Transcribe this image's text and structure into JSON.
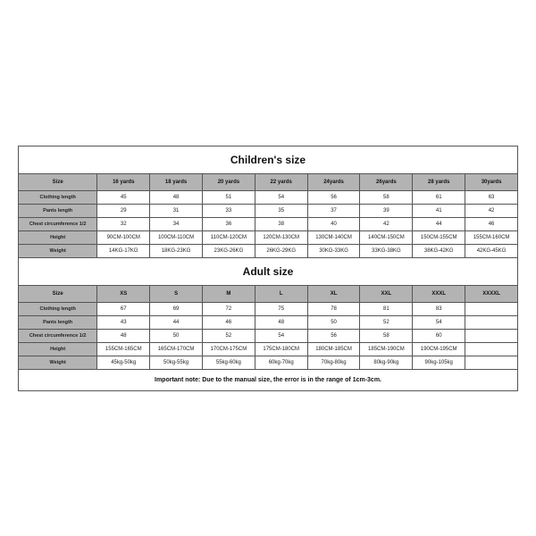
{
  "children": {
    "title": "Children's size",
    "columns": [
      "Size",
      "16 yards",
      "18 yards",
      "20 yards",
      "22 yards",
      "24yards",
      "26yards",
      "28 yards",
      "30yards"
    ],
    "rows": [
      {
        "label": "Clothing length",
        "values": [
          "45",
          "48",
          "51",
          "54",
          "56",
          "58",
          "61",
          "63"
        ]
      },
      {
        "label": "Pants length",
        "values": [
          "29",
          "31",
          "33",
          "35",
          "37",
          "39",
          "41",
          "42"
        ]
      },
      {
        "label": "Chest circumference 1/2",
        "values": [
          "32",
          "34",
          "36",
          "38",
          "40",
          "42",
          "44",
          "46"
        ]
      },
      {
        "label": "Height",
        "values": [
          "90CM-100CM",
          "100CM-110CM",
          "110CM-120CM",
          "120CM-130CM",
          "130CM-140CM",
          "140CM-150CM",
          "150CM-155CM",
          "155CM-160CM"
        ]
      },
      {
        "label": "Weight",
        "values": [
          "14KG-17KG",
          "18KG-23KG",
          "23KG-26KG",
          "26KG-29KG",
          "30KG-33KG",
          "33KG-38KG",
          "38KG-42KG",
          "42KG-45KG"
        ]
      }
    ]
  },
  "adult": {
    "title": "Adult size",
    "columns": [
      "Size",
      "XS",
      "S",
      "M",
      "L",
      "XL",
      "XXL",
      "XXXL",
      "XXXXL"
    ],
    "rows": [
      {
        "label": "Clothing length",
        "values": [
          "67",
          "69",
          "72",
          "75",
          "78",
          "81",
          "83",
          ""
        ]
      },
      {
        "label": "Pants length",
        "values": [
          "43",
          "44",
          "46",
          "48",
          "50",
          "52",
          "54",
          ""
        ]
      },
      {
        "label": "Chest circumference 1/2",
        "values": [
          "48",
          "50",
          "52",
          "54",
          "56",
          "58",
          "60",
          ""
        ]
      },
      {
        "label": "Height",
        "values": [
          "155CM-165CM",
          "165CM-170CM",
          "170CM-175CM",
          "175CM-180CM",
          "180CM-185CM",
          "185CM-190CM",
          "190CM-195CM",
          ""
        ]
      },
      {
        "label": "Weight",
        "values": [
          "45kg-50kg",
          "50kg-55kg",
          "55kg-60kg",
          "60kg-70kg",
          "70kg-80kg",
          "80kg-90kg",
          "90kg-105kg",
          ""
        ]
      }
    ]
  },
  "note": "Important note: Due to the manual size, the error is in the range of 1cm-3cm."
}
